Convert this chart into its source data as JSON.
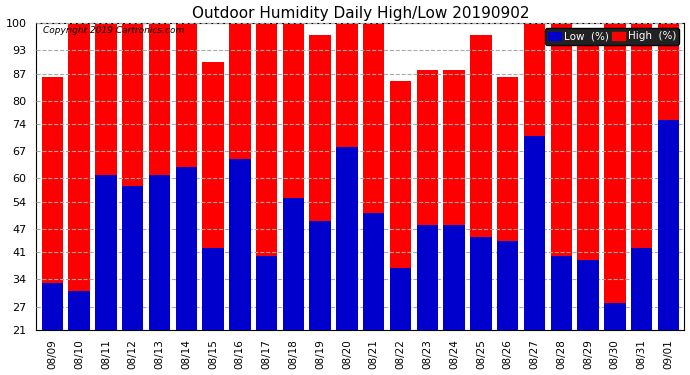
{
  "title": "Outdoor Humidity Daily High/Low 20190902",
  "copyright": "Copyright 2019 Cartronics.com",
  "dates": [
    "08/09",
    "08/10",
    "08/11",
    "08/12",
    "08/13",
    "08/14",
    "08/15",
    "08/16",
    "08/17",
    "08/18",
    "08/19",
    "08/20",
    "08/21",
    "08/22",
    "08/23",
    "08/24",
    "08/25",
    "08/26",
    "08/27",
    "08/28",
    "08/29",
    "08/30",
    "08/31",
    "09/01"
  ],
  "high_values": [
    86,
    100,
    100,
    100,
    100,
    100,
    90,
    100,
    100,
    100,
    97,
    100,
    100,
    85,
    88,
    88,
    97,
    86,
    100,
    100,
    97,
    100,
    100,
    100
  ],
  "low_values": [
    33,
    31,
    61,
    58,
    61,
    63,
    42,
    65,
    40,
    55,
    49,
    68,
    51,
    37,
    48,
    48,
    45,
    44,
    71,
    40,
    39,
    28,
    42,
    75
  ],
  "high_color": "#ff0000",
  "low_color": "#0000cc",
  "bg_color": "#ffffff",
  "grid_color": "#aaaaaa",
  "ylim_min": 21,
  "ylim_max": 100,
  "yticks": [
    21,
    27,
    34,
    41,
    47,
    54,
    60,
    67,
    74,
    80,
    87,
    93,
    100
  ],
  "bar_width": 0.8,
  "title_fontsize": 11,
  "legend_label_low": "Low  (%)",
  "legend_label_high": "High  (%)"
}
